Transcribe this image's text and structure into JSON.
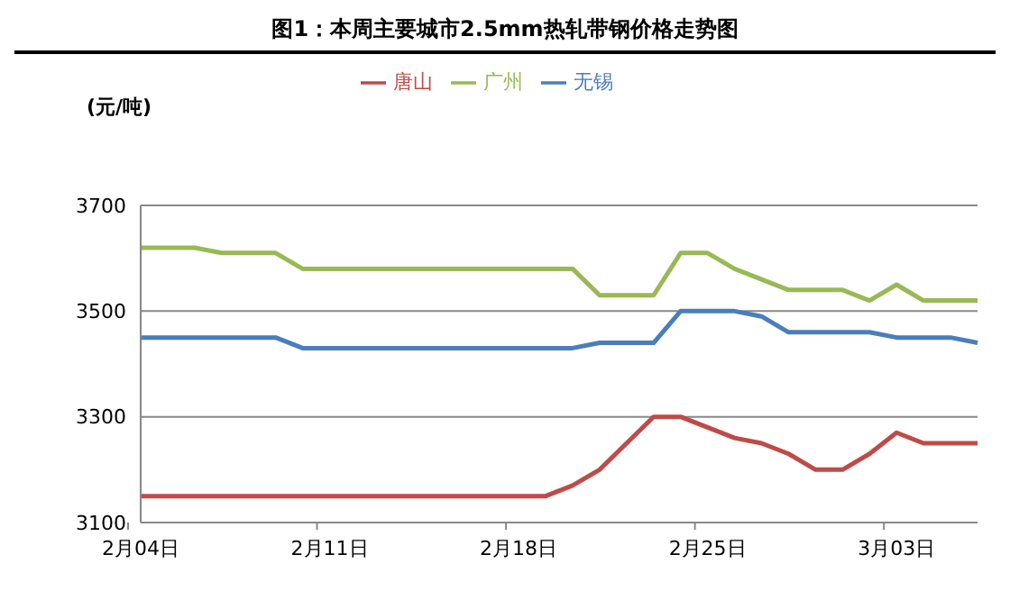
{
  "chart_data": {
    "type": "line",
    "title": "图1：本周主要城市2.5mm热轧带钢价格走势图",
    "ylabel": "(元/吨)",
    "categories": [
      "2月04日",
      null,
      null,
      null,
      null,
      null,
      null,
      "2月11日",
      null,
      null,
      null,
      null,
      null,
      null,
      "2月18日",
      null,
      null,
      null,
      null,
      null,
      null,
      "2月25日",
      null,
      null,
      null,
      null,
      null,
      null,
      "3月03日",
      null,
      null,
      null
    ],
    "series": [
      {
        "name": "无锡",
        "color": "#4a7ebb",
        "values": [
          3450,
          3450,
          3450,
          3450,
          3450,
          3450,
          3430,
          3430,
          3430,
          3430,
          3430,
          3430,
          3430,
          3430,
          3430,
          3430,
          3430,
          3440,
          3440,
          3440,
          3500,
          3500,
          3500,
          3490,
          3460,
          3460,
          3460,
          3460,
          3450,
          3450,
          3450,
          3440
        ]
      },
      {
        "name": "唐山",
        "color": "#be4b48",
        "values": [
          3150,
          3150,
          3150,
          3150,
          3150,
          3150,
          3150,
          3150,
          3150,
          3150,
          3150,
          3150,
          3150,
          3150,
          3150,
          3150,
          3170,
          3200,
          3250,
          3300,
          3300,
          3280,
          3260,
          3250,
          3230,
          3200,
          3200,
          3230,
          3270,
          3250,
          3250,
          3250
        ]
      },
      {
        "name": "广州",
        "color": "#98b954",
        "values": [
          3620,
          3620,
          3620,
          3610,
          3610,
          3610,
          3580,
          3580,
          3580,
          3580,
          3580,
          3580,
          3580,
          3580,
          3580,
          3580,
          3580,
          3530,
          3530,
          3530,
          3610,
          3610,
          3580,
          3560,
          3540,
          3540,
          3540,
          3520,
          3550,
          3520,
          3520,
          3520
        ]
      }
    ],
    "ylim": [
      3100,
      3700
    ],
    "yticks": [
      3100,
      3300,
      3500,
      3700
    ],
    "grid": "y",
    "legend": "top",
    "marker": "none",
    "line_style": "solid"
  }
}
